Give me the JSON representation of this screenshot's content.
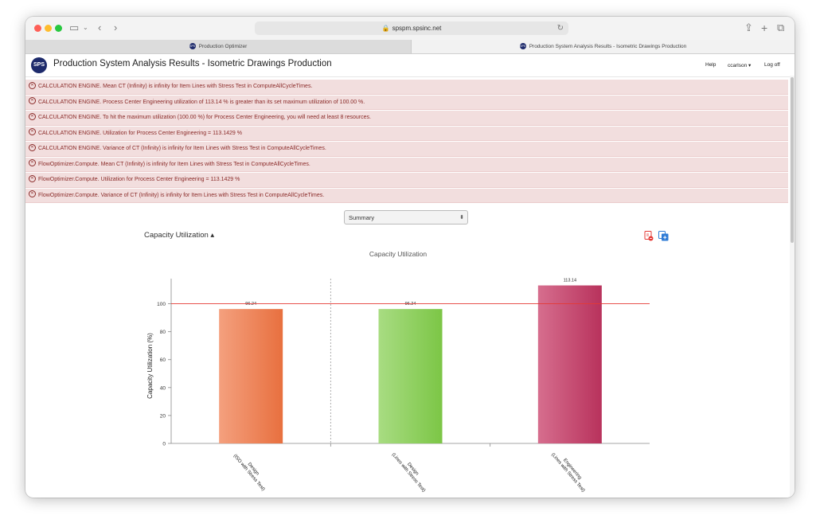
{
  "browser": {
    "url": "spspm.spsinc.net",
    "tabs": [
      {
        "label": "Production Optimizer"
      },
      {
        "label": "Production System Analysis Results - Isometric Drawings Production"
      }
    ]
  },
  "colors": {
    "alert_bg": "#f2dede",
    "alert_text": "#8a2a28",
    "brand": "#1d2a6b",
    "limit_line": "#e53935"
  },
  "header": {
    "logo_text": "SPS",
    "title": "Production System Analysis Results - Isometric Drawings Production",
    "help": "Help",
    "user": "ccarlson ▾",
    "logoff": "Log off"
  },
  "alerts": [
    "CALCULATION ENGINE. Mean CT (Infinity) is infinity for Item Lines with Stress Test in ComputeAllCycleTimes.",
    "CALCULATION ENGINE. Process Center Engineering utilization of 113.14 % is greater than its set maximum utilization of 100.00 %.",
    "CALCULATION ENGINE. To hit the maximum utilization (100.00 %) for Process Center Engineering, you will need at least 8 resources.",
    "CALCULATION ENGINE. Utilization for Process Center Engineering = 113.1429 %",
    "CALCULATION ENGINE. Variance of CT (Infinity) is infinity for Item Lines with Stress Test in ComputeAllCycleTimes.",
    "FlowOptimizer.Compute. Mean CT (Infinity) is infinity for Item Lines with Stress Test in ComputeAllCycleTimes.",
    "FlowOptimizer.Compute. Utilization for Process Center Engineering = 113.1429 %",
    "FlowOptimizer.Compute. Variance of CT (Infinity) is infinity for Item Lines with Stress Test in ComputeAllCycleTimes."
  ],
  "view_select": {
    "value": "Summary"
  },
  "section": {
    "title": "Capacity Utilization ▴"
  },
  "icons": {
    "export_pdf": "pdf-export-icon",
    "export_copy": "copy-export-icon"
  },
  "chart_data": {
    "type": "bar",
    "title": "Capacity Utilization",
    "ylabel": "Capacity Utilization (%)",
    "xlabel": "",
    "ylim": [
      0,
      118
    ],
    "yticks": [
      0,
      20,
      40,
      60,
      80,
      100
    ],
    "reference_line": 100,
    "categories": [
      [
        "Design",
        "(ISO with Stress Test)"
      ],
      [
        "Design",
        "(Lines with Stress Test)"
      ],
      [
        "Engineering",
        "(Lines with Stress Test)"
      ]
    ],
    "values": [
      96.24,
      96.24,
      113.14
    ],
    "data_labels": [
      "96.24",
      "96.24",
      "113.14"
    ],
    "bar_colors": [
      [
        "#f4a07e",
        "#e8703f"
      ],
      [
        "#a8dc82",
        "#7cc646"
      ],
      [
        "#d66e8e",
        "#b8325c"
      ]
    ],
    "grid": false,
    "legend": "none"
  }
}
